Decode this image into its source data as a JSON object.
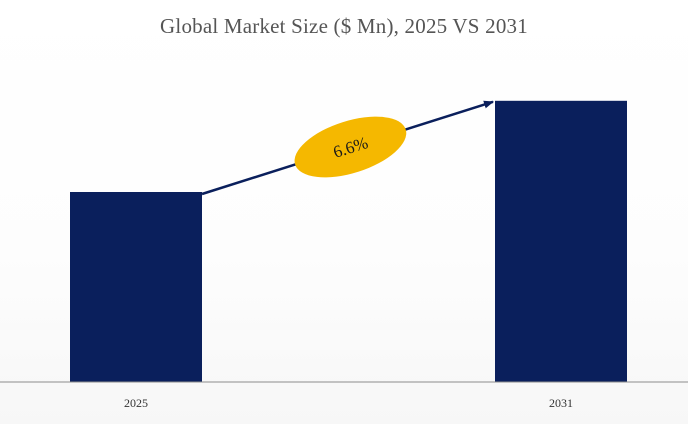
{
  "chart_data": {
    "type": "bar",
    "title": "Global Market Size ($ Mn), 2025 VS 2031",
    "categories": [
      "2025",
      "2031"
    ],
    "values": [
      100,
      148
    ],
    "ylim": [
      0,
      150
    ],
    "xlabel": "",
    "ylabel": "",
    "grid": false,
    "legend": "none",
    "annotation": {
      "text": "6.6%",
      "from": "2025",
      "to": "2031"
    }
  },
  "colors": {
    "bar": "#0a1f5c",
    "arrow": "#0a1f5c",
    "badge": "#f5b800",
    "axis": "#8c8c8c"
  }
}
